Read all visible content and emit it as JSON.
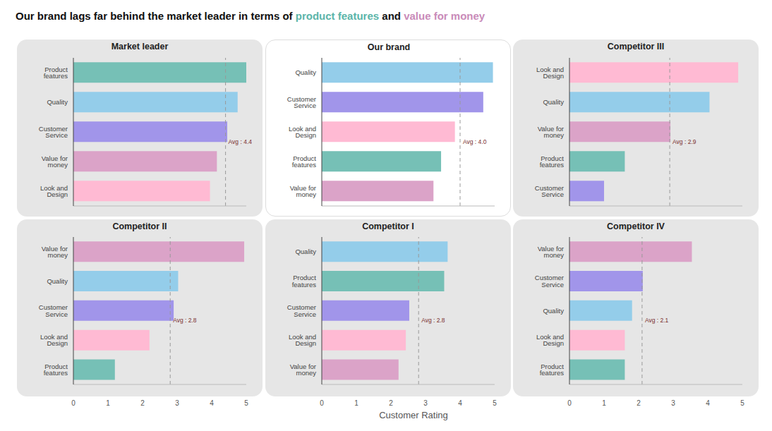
{
  "title_parts": [
    {
      "text": "Our brand lags far behind the market leader in terms of "
    },
    {
      "text": "product features",
      "color": "#5bb5a9"
    },
    {
      "text": " and "
    },
    {
      "text": "value for money",
      "color": "#c98bb9"
    }
  ],
  "xlabel": "Customer Rating",
  "chart_data": [
    {
      "type": "bar",
      "orientation": "horizontal",
      "title": "Market leader",
      "categories": [
        "Product features",
        "Quality",
        "Customer Service",
        "Value for money",
        "Look and Design"
      ],
      "values": [
        5.0,
        4.75,
        4.45,
        4.15,
        3.95
      ],
      "colors": [
        "#76c0b6",
        "#94cdea",
        "#a195ea",
        "#dba3c8",
        "#ffbad3"
      ],
      "xlim": [
        0,
        5
      ],
      "xticks": [
        0,
        1,
        2,
        3,
        4,
        5
      ],
      "grid": false,
      "tick_labels": "y",
      "average": {
        "value": 4.4,
        "label": "Avg : 4.4"
      }
    },
    {
      "type": "bar",
      "orientation": "horizontal",
      "title": "Our brand",
      "categories": [
        "Quality",
        "Customer Service",
        "Look and Design",
        "Product features",
        "Value for money"
      ],
      "values": [
        4.95,
        4.67,
        3.85,
        3.45,
        3.23
      ],
      "colors": [
        "#94cdea",
        "#a195ea",
        "#ffbad3",
        "#76c0b6",
        "#dba3c8"
      ],
      "xlim": [
        0,
        5
      ],
      "xticks": [
        0,
        1,
        2,
        3,
        4,
        5
      ],
      "grid": false,
      "tick_labels": "y",
      "average": {
        "value": 4.0,
        "label": "Avg : 4.0"
      }
    },
    {
      "type": "bar",
      "orientation": "horizontal",
      "title": "Competitor III",
      "categories": [
        "Look and Design",
        "Quality",
        "Value for money",
        "Product features",
        "Customer Service"
      ],
      "values": [
        4.88,
        4.05,
        2.92,
        1.6,
        1.0
      ],
      "colors": [
        "#ffbad3",
        "#94cdea",
        "#dba3c8",
        "#76c0b6",
        "#a195ea"
      ],
      "xlim": [
        0,
        5
      ],
      "xticks": [
        0,
        1,
        2,
        3,
        4,
        5
      ],
      "grid": false,
      "tick_labels": "y",
      "average": {
        "value": 2.9,
        "label": "Avg : 2.9"
      }
    },
    {
      "type": "bar",
      "orientation": "horizontal",
      "title": "Competitor II",
      "categories": [
        "Value for money",
        "Quality",
        "Customer Service",
        "Look and Design",
        "Product features"
      ],
      "values": [
        4.94,
        3.03,
        2.9,
        2.2,
        1.2
      ],
      "colors": [
        "#dba3c8",
        "#94cdea",
        "#a195ea",
        "#ffbad3",
        "#76c0b6"
      ],
      "xlim": [
        0,
        5
      ],
      "xticks": [
        0,
        1,
        2,
        3,
        4,
        5
      ],
      "grid": false,
      "average": {
        "value": 2.8,
        "label": "Avg : 2.8"
      }
    },
    {
      "type": "bar",
      "orientation": "horizontal",
      "title": "Competitor I",
      "categories": [
        "Quality",
        "Product features",
        "Customer Service",
        "Look and Design",
        "Value for money"
      ],
      "values": [
        3.64,
        3.54,
        2.53,
        2.43,
        2.22
      ],
      "colors": [
        "#94cdea",
        "#76c0b6",
        "#a195ea",
        "#ffbad3",
        "#dba3c8"
      ],
      "xlim": [
        0,
        5
      ],
      "xticks": [
        0,
        1,
        2,
        3,
        4,
        5
      ],
      "grid": false,
      "average": {
        "value": 2.8,
        "label": "Avg : 2.8"
      }
    },
    {
      "type": "bar",
      "orientation": "horizontal",
      "title": "Competitor IV",
      "categories": [
        "Value for money",
        "Customer Service",
        "Quality",
        "Look and Design",
        "Product features"
      ],
      "values": [
        3.54,
        2.12,
        1.81,
        1.6,
        1.6
      ],
      "colors": [
        "#dba3c8",
        "#a195ea",
        "#94cdea",
        "#ffbad3",
        "#76c0b6"
      ],
      "xlim": [
        0,
        5
      ],
      "xticks": [
        0,
        1,
        2,
        3,
        4,
        5
      ],
      "grid": false,
      "average": {
        "value": 2.1,
        "label": "Avg : 2.1"
      }
    }
  ]
}
